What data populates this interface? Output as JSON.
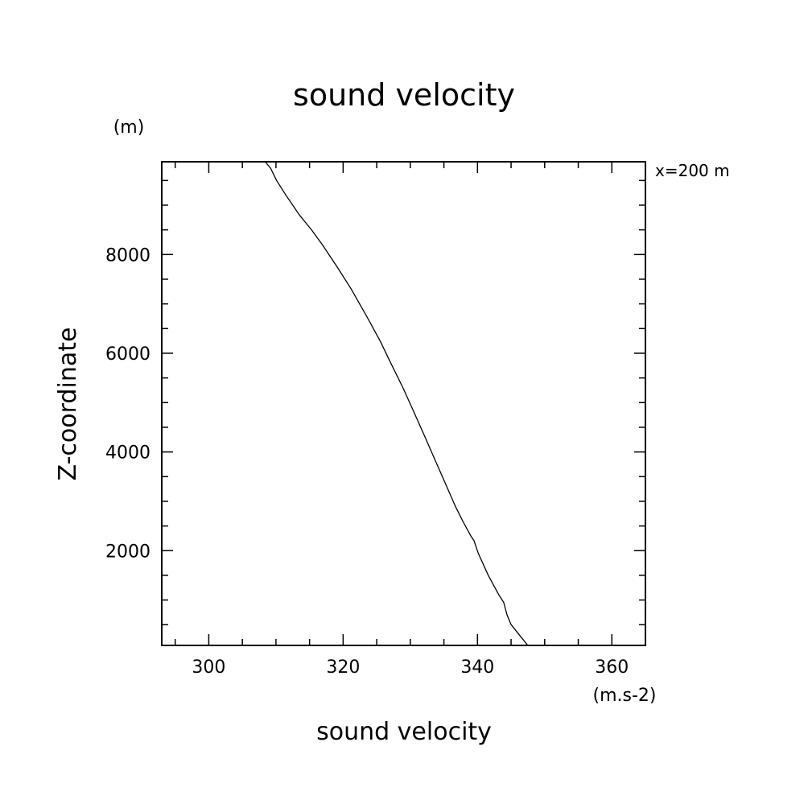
{
  "chart_data": {
    "type": "line",
    "title": "sound velocity",
    "xlabel": "sound velocity",
    "ylabel": "Z-coordinate",
    "x_unit": "(m.s-2)",
    "y_unit": "(m)",
    "annotation": "x=200 m",
    "xlim": [
      293,
      365
    ],
    "ylim": [
      80,
      9880
    ],
    "xticks": [
      300,
      320,
      340,
      360
    ],
    "yticks": [
      2000,
      4000,
      6000,
      8000
    ],
    "grid": false,
    "legend": "none",
    "line_color": "#000000",
    "series": [
      {
        "x": [
          347.5,
          346.3,
          345.0,
          344.4,
          343.9,
          343.2,
          341.6,
          340.1,
          339.5,
          339.0,
          337.8,
          336.7,
          335.1,
          333.8,
          332.2,
          330.4,
          328.9,
          327.1,
          325.5,
          323.5,
          321.2,
          319.1,
          316.9,
          315.3,
          313.5,
          311.5,
          310.1,
          309.2,
          308.4
        ],
        "y": [
          80,
          280,
          500,
          700,
          950,
          1100,
          1500,
          1950,
          2200,
          2300,
          2600,
          2900,
          3400,
          3800,
          4300,
          4850,
          5300,
          5800,
          6250,
          6750,
          7300,
          7750,
          8200,
          8500,
          8800,
          9200,
          9500,
          9750,
          9880
        ]
      }
    ]
  }
}
